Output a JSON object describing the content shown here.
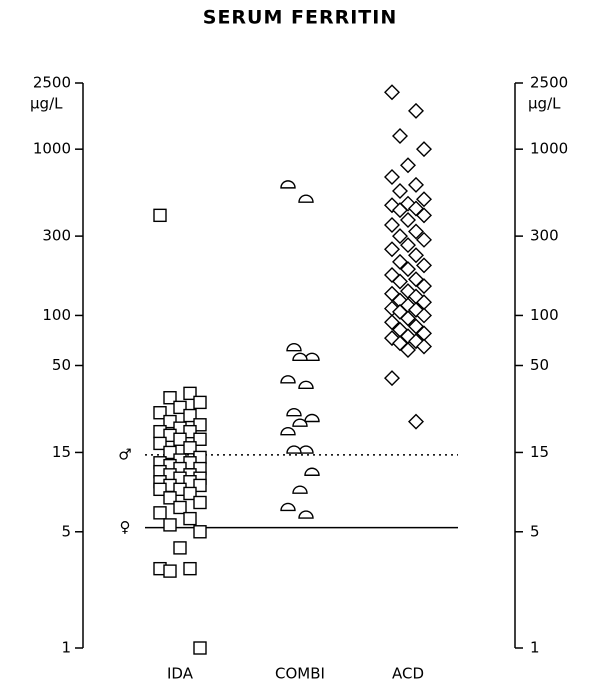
{
  "chart_data": {
    "type": "strip",
    "title": "SERUM FERRITIN",
    "y_unit": "µg/L",
    "log_scale": true,
    "categories": [
      "IDA",
      "COMBI",
      "ACD"
    ],
    "markers": [
      "square",
      "half-circle",
      "diamond"
    ],
    "color": "#000000",
    "ylim": [
      1,
      2500
    ],
    "yticks": [
      1,
      5,
      15,
      50,
      100,
      300,
      1000,
      2500
    ],
    "reference_lines": [
      {
        "value": 14.5,
        "label": "♂",
        "style": "dotted"
      },
      {
        "value": 5.3,
        "label": "♀",
        "style": "solid"
      }
    ],
    "values": [
      [
        400,
        34,
        32,
        30,
        28,
        26,
        25,
        23,
        22,
        21,
        20,
        20,
        19,
        18,
        18,
        17,
        16,
        15,
        14,
        13.5,
        13,
        13,
        12.5,
        12,
        12,
        11.5,
        11,
        11,
        10.5,
        10.5,
        10,
        10,
        9.5,
        9.5,
        9,
        9,
        8.5,
        8,
        7.5,
        7,
        6.5,
        6,
        5.5,
        5,
        4,
        3,
        3,
        2.9,
        1
      ],
      [
        610,
        500,
        64,
        56,
        56,
        41,
        38,
        26,
        24,
        22.5,
        20,
        15.5,
        15.5,
        11.4,
        8.9,
        7,
        6.3
      ],
      [
        2200,
        1700,
        1200,
        1000,
        800,
        680,
        610,
        560,
        500,
        470,
        460,
        440,
        430,
        400,
        375,
        350,
        320,
        300,
        285,
        265,
        250,
        230,
        210,
        200,
        190,
        175,
        165,
        160,
        150,
        140,
        135,
        130,
        123,
        120,
        115,
        110,
        108,
        105,
        100,
        96,
        91,
        86,
        82,
        78,
        75,
        73,
        70,
        68,
        65,
        62,
        42,
        23
      ]
    ]
  }
}
